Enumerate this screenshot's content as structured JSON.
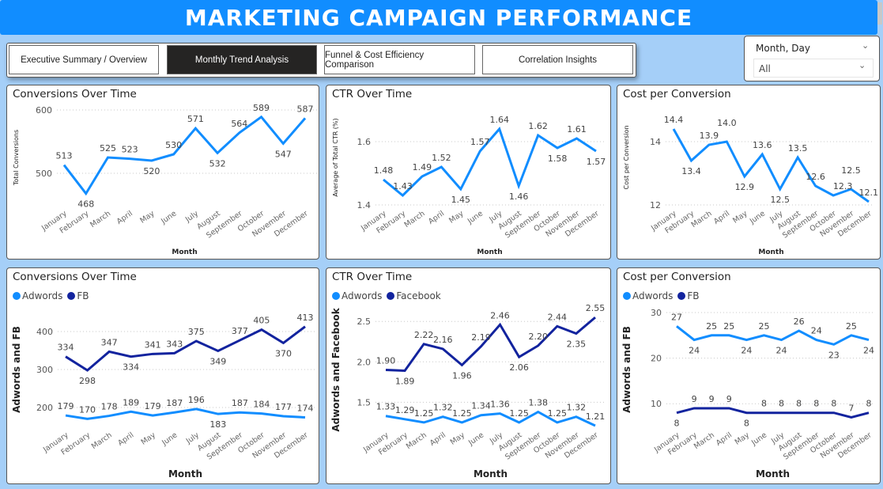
{
  "header": {
    "title": "MARKETING CAMPAIGN PERFORMANCE"
  },
  "tabs": [
    {
      "label": "Executive Summary / Overview",
      "active": false
    },
    {
      "label": "Monthly Trend Analysis",
      "active": true
    },
    {
      "label": "Funnel & Cost Efficiency Comparison",
      "active": false
    },
    {
      "label": "Correlation Insights",
      "active": false
    }
  ],
  "slicer": {
    "label": "Month, Day",
    "value": "All"
  },
  "colors": {
    "adwords": "#118DFF",
    "fb": "#12239E",
    "total": "#118DFF"
  },
  "chart_data": [
    {
      "type": "line",
      "title": "Conversions Over Time",
      "xlabel": "Month",
      "ylabel": "Total Conversions",
      "categories": [
        "January",
        "February",
        "March",
        "April",
        "May",
        "June",
        "July",
        "August",
        "September",
        "October",
        "November",
        "December"
      ],
      "yticks": [
        "500",
        "600"
      ],
      "ylim": [
        450,
        600
      ],
      "grid": true,
      "series": [
        {
          "values": [
            513,
            468,
            525,
            523,
            520,
            530,
            571,
            532,
            564,
            589,
            547,
            587
          ],
          "labels": [
            "513",
            "468",
            "525",
            "523",
            "520",
            "530",
            "571",
            "532",
            "564",
            "589",
            "547",
            "587"
          ]
        }
      ]
    },
    {
      "type": "line",
      "title": "CTR Over Time",
      "xlabel": "Month",
      "ylabel": "Average of Total CTR (%)",
      "categories": [
        "January",
        "February",
        "March",
        "April",
        "May",
        "June",
        "July",
        "August",
        "September",
        "October",
        "November",
        "December"
      ],
      "yticks": [
        "1.4",
        "1.6"
      ],
      "ylim": [
        1.4,
        1.7
      ],
      "grid": true,
      "series": [
        {
          "values": [
            1.48,
            1.43,
            1.49,
            1.52,
            1.45,
            1.57,
            1.64,
            1.46,
            1.62,
            1.58,
            1.61,
            1.57
          ],
          "labels": [
            "1.48",
            "1.43",
            "1.49",
            "1.52",
            "1.45",
            "1.57",
            "1.64",
            "1.46",
            "1.62",
            "1.58",
            "1.61",
            "1.57"
          ]
        }
      ]
    },
    {
      "type": "line",
      "title": "Cost per Conversion",
      "xlabel": "Month",
      "ylabel": "Cost per Conversion",
      "categories": [
        "January",
        "February",
        "March",
        "April",
        "May",
        "June",
        "July",
        "August",
        "September",
        "October",
        "November",
        "December"
      ],
      "yticks": [
        "12",
        "14"
      ],
      "ylim": [
        12,
        15
      ],
      "grid": true,
      "series": [
        {
          "values": [
            14.4,
            13.4,
            13.9,
            14.0,
            12.9,
            13.6,
            12.5,
            13.5,
            12.6,
            12.3,
            12.5,
            12.1
          ],
          "labels": [
            "14.4",
            "13.4",
            "13.9",
            "14.0",
            "12.9",
            "13.6",
            "12.5",
            "13.5",
            "12.6",
            "12.3",
            "12.5",
            "12.1"
          ]
        }
      ]
    },
    {
      "type": "line",
      "title": "Conversions Over Time",
      "xlabel": "Month",
      "ylabel": "Adwords and FB",
      "legend": "top-left",
      "categories": [
        "January",
        "February",
        "March",
        "April",
        "May",
        "June",
        "July",
        "August",
        "September",
        "October",
        "November",
        "December"
      ],
      "yticks": [
        "200",
        "300",
        "400"
      ],
      "ylim": [
        150,
        450
      ],
      "grid": true,
      "series": [
        {
          "name": "Adwords",
          "color": "#118DFF",
          "values": [
            179,
            170,
            178,
            189,
            179,
            187,
            196,
            183,
            187,
            184,
            177,
            174
          ],
          "labels": [
            "179",
            "170",
            "178",
            "189",
            "179",
            "187",
            "196",
            "183",
            "187",
            "184",
            "177",
            "174"
          ]
        },
        {
          "name": "FB",
          "color": "#12239E",
          "values": [
            334,
            298,
            347,
            334,
            341,
            343,
            375,
            349,
            377,
            405,
            370,
            413
          ],
          "labels": [
            "334",
            "298",
            "347",
            "334",
            "341",
            "343",
            "375",
            "349",
            "377",
            "405",
            "370",
            "413"
          ]
        }
      ]
    },
    {
      "type": "line",
      "title": "CTR Over Time",
      "xlabel": "Month",
      "ylabel": "Adwords and Facebook",
      "legend": "top-left",
      "categories": [
        "January",
        "February",
        "March",
        "April",
        "May",
        "June",
        "July",
        "August",
        "September",
        "October",
        "November",
        "December"
      ],
      "yticks": [
        "1.5",
        "2.0",
        "2.5"
      ],
      "ylim": [
        1.2,
        2.6
      ],
      "grid": true,
      "series": [
        {
          "name": "Adwords",
          "color": "#118DFF",
          "values": [
            1.33,
            1.29,
            1.25,
            1.32,
            1.25,
            1.34,
            1.36,
            1.25,
            1.38,
            1.25,
            1.32,
            1.21
          ],
          "labels": [
            "1.33",
            "1.29",
            "1.25",
            "1.32",
            "1.25",
            "1.34",
            "1.36",
            "1.25",
            "1.38",
            "1.25",
            "1.32",
            "1.21"
          ]
        },
        {
          "name": "Facebook",
          "color": "#12239E",
          "values": [
            1.9,
            1.89,
            2.22,
            2.16,
            1.96,
            2.19,
            2.46,
            2.06,
            2.2,
            2.44,
            2.35,
            2.55
          ],
          "labels": [
            "1.90",
            "1.89",
            "2.22",
            "2.16",
            "1.96",
            "2.19",
            "2.46",
            "2.06",
            "2.20",
            "2.44",
            "2.35",
            "2.55"
          ]
        }
      ]
    },
    {
      "type": "line",
      "title": "Cost per Conversion",
      "xlabel": "Month",
      "ylabel": "Adwords and FB",
      "legend": "top-left",
      "categories": [
        "January",
        "February",
        "March",
        "April",
        "May",
        "June",
        "July",
        "August",
        "September",
        "October",
        "November",
        "December"
      ],
      "yticks": [
        "10",
        "20",
        "30"
      ],
      "ylim": [
        5,
        30
      ],
      "grid": true,
      "series": [
        {
          "name": "Adwords",
          "color": "#118DFF",
          "values": [
            27,
            24,
            25,
            25,
            24,
            25,
            24,
            26,
            24,
            23,
            25,
            24
          ],
          "labels": [
            "27",
            "24",
            "25",
            "25",
            "24",
            "25",
            "24",
            "26",
            "24",
            "23",
            "25",
            "24"
          ]
        },
        {
          "name": "FB",
          "color": "#12239E",
          "values": [
            8,
            9,
            9,
            9,
            8,
            8,
            8,
            8,
            8,
            8,
            7,
            8
          ],
          "labels": [
            "8",
            "9",
            "9",
            "9",
            "8",
            "8",
            "8",
            "8",
            "8",
            "8",
            "7",
            "8"
          ]
        }
      ]
    }
  ]
}
